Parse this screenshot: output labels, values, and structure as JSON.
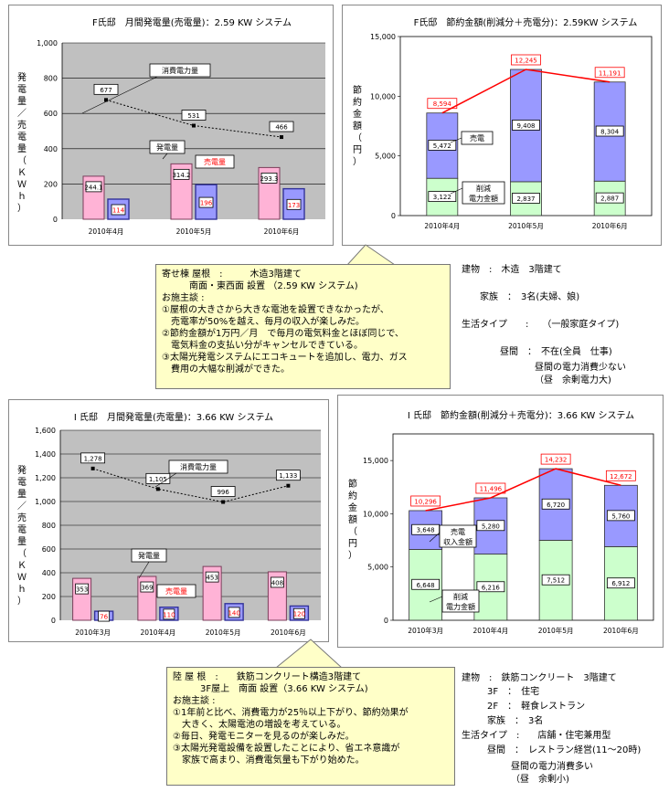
{
  "charts": [
    {
      "title": "F氏邸　月間発電量(売電量)：2.59 KW システム",
      "ylabel": "発電量／売電量（ＫＷｈ）",
      "yticks": [
        "0",
        "200",
        "400",
        "600",
        "800",
        "1,000"
      ],
      "ymax": 1000,
      "categories": [
        "2010年4月",
        "2010年5月",
        "2010年6月"
      ],
      "gen": [
        244.1,
        314.2,
        293.3
      ],
      "sold": [
        114,
        196,
        173
      ],
      "cons": [
        677,
        531,
        466
      ],
      "gen_labels": [
        "244.1",
        "314.2",
        "293.3"
      ],
      "sold_labels": [
        "114",
        "196",
        "173"
      ],
      "cons_labels": [
        "677",
        "531",
        "466"
      ],
      "callouts": {
        "cons": "消費電力量",
        "gen": "発電量",
        "sold": "売電量"
      }
    },
    {
      "title": "F氏邸　節約金額(削減分＋売電分)：2.59KW システム",
      "ylabel": "節約金額（円）",
      "yticks": [
        "0",
        "5,000",
        "10,000",
        "15,000"
      ],
      "ymax": 15000,
      "categories": [
        "2010年4月",
        "2010年5月",
        "2010年6月"
      ],
      "reduce": [
        3122,
        2837,
        2887
      ],
      "sale": [
        5472,
        9408,
        8304
      ],
      "total": [
        8594,
        12245,
        11191
      ],
      "reduce_labels": [
        "3,122",
        "2,837",
        "2,887"
      ],
      "sale_labels": [
        "5,472",
        "9,408",
        "8,304"
      ],
      "total_labels": [
        "8,594",
        "12,245",
        "11,191"
      ],
      "callouts": {
        "sale": "売電",
        "reduce1": "削減",
        "reduce2": "電力金額"
      }
    },
    {
      "title": "I 氏邸　月間発電量(売電量)：3.66 KW システム",
      "ylabel": "発電量／売電量（ＫＷｈ）",
      "yticks": [
        "0",
        "200",
        "400",
        "600",
        "800",
        "1,000",
        "1,200",
        "1,400",
        "1,600"
      ],
      "ymax": 1600,
      "categories": [
        "2010年3月",
        "2010年4月",
        "2010年5月",
        "2010年6月"
      ],
      "gen": [
        353,
        369,
        453,
        408
      ],
      "sold": [
        76,
        110,
        140,
        120
      ],
      "cons": [
        1278,
        1105,
        996,
        1133
      ],
      "gen_labels": [
        "353",
        "369",
        "453",
        "408"
      ],
      "sold_labels": [
        "76",
        "110",
        "140",
        "120"
      ],
      "cons_labels": [
        "1,278",
        "1,105",
        "996",
        "1,133"
      ],
      "callouts": {
        "cons": "消費電力量",
        "gen": "発電量",
        "sold": "売電量"
      }
    },
    {
      "title": "I 氏邸　節約金額(削減分＋売電分)：3.66 KW システム",
      "ylabel": "節約金額（円）",
      "yticks": [
        "0",
        "5,000",
        "10,000",
        "15,000"
      ],
      "ymax": 17500,
      "categories": [
        "2010年3月",
        "2010年4月",
        "2010年5月",
        "2010年6月"
      ],
      "reduce": [
        6648,
        6216,
        7512,
        6912
      ],
      "sale": [
        3648,
        5280,
        6720,
        5760
      ],
      "total": [
        10296,
        11496,
        14232,
        12672
      ],
      "reduce_labels": [
        "6,648",
        "6,216",
        "7,512",
        "6,912"
      ],
      "sale_labels": [
        "3,648",
        "5,280",
        "6,720",
        "5,760"
      ],
      "total_labels": [
        "10,296",
        "11,496",
        "14,232",
        "12,672"
      ],
      "callouts": {
        "sale1": "売電",
        "sale2": "収入金額",
        "reduce1": "削減",
        "reduce2": "電力金額"
      }
    }
  ],
  "callout1": {
    "lines": [
      "寄せ棟 屋根　:　　　木造3階建て",
      "　　　南面・東西面 設置 （2.59 KW システム)",
      "お施主談 :",
      "①屋根の大きさから大きな電池を設置できなかったが、",
      "　売電率が50%を越え、毎月の収入が楽しみだ。",
      "②節約金額が1万円／月　で毎月の電気料金とほぼ同じで、",
      "　電気料金の支払い分がキャンセルできている。",
      "③太陽光発電システムにエコキュートを追加し、電力、ガス",
      "　費用の大幅な削減ができた。"
    ]
  },
  "info1": {
    "lines": [
      "建物　:　木造　3階建て",
      "家族　：　3名(夫婦、娘)",
      "生活タイプ　　:　　（一般家庭タイプ)",
      "昼間　：　不在(全員　仕事)",
      "昼間の電力消費少ない",
      "（昼　余剰電力大)"
    ]
  },
  "callout2": {
    "lines": [
      "陸 屋 根　:　　鉄筋コンクリート構造3階建て",
      "　　　3F屋上　南面 設置（3.66 KW システム)",
      "お施主談 :",
      "①1年前と比べ、消費電力が25％以上下がり、節約効果が",
      "　大きく、太陽電池の増設を考えている。",
      "②毎日、発電モニターを見るのが楽しみだ。",
      "③太陽光発電設備を設置したことにより、省エネ意識が",
      "　家族で高まり、消費電気量も下がり始めた。"
    ]
  },
  "info2": {
    "lines": [
      "建物　:　鉄筋コンクリート　3階建て",
      "3F　：　住宅",
      "2F　：　軽食レストラン",
      "家族　：　3名",
      "生活タイプ　:　　店舗・住宅兼用型",
      "昼間　：　レストラン経営(11～20時)",
      "昼間の電力消費多い",
      "（昼　余剰小)"
    ]
  },
  "colors": {
    "gen": "#ffb3d6",
    "gen_edge": "#7a3d5a",
    "sold": "#9999ff",
    "sold_edge": "#333399",
    "reduce": "#ccffcc",
    "sale": "#9999ff",
    "total_line": "#ff0000",
    "plot_bg": "#c0c0c0",
    "red_text": "#ff0000"
  }
}
